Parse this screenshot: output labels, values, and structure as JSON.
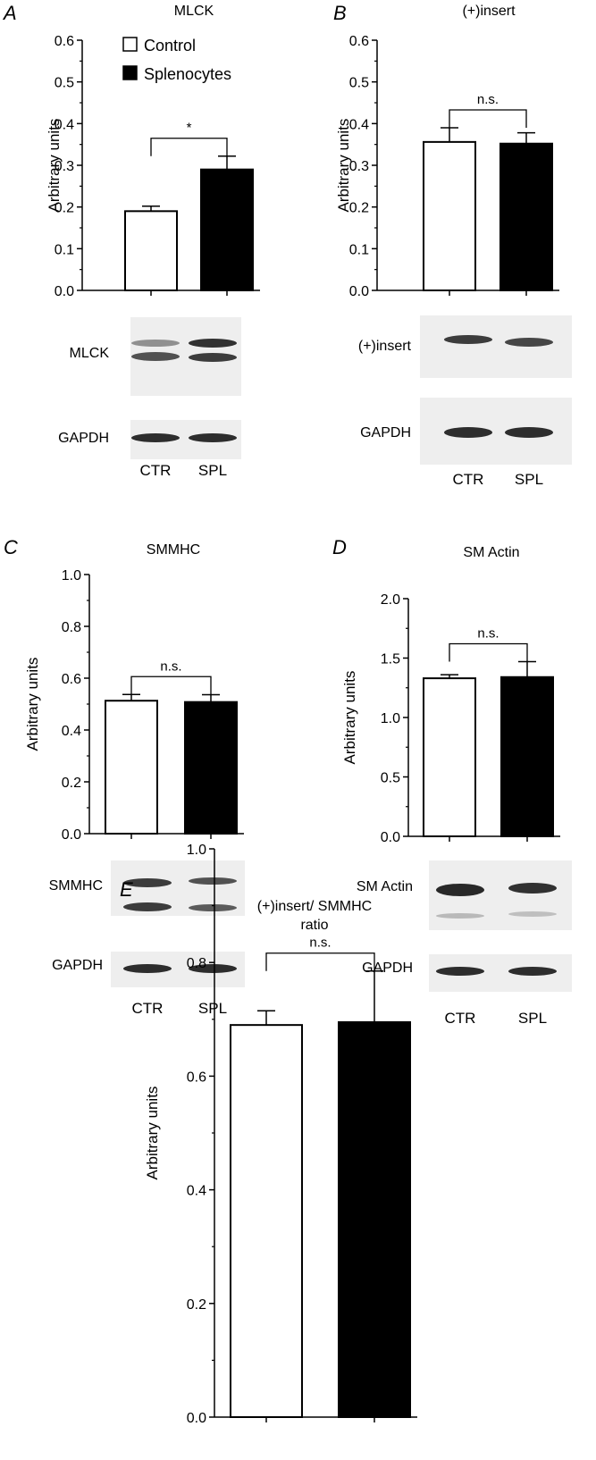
{
  "colors": {
    "control": "#ffffff",
    "splenocytes": "#000000",
    "axis": "#000000",
    "blot_bg": "#eeeeee",
    "band": "#1c1c1c"
  },
  "legend": {
    "control": "Control",
    "splenocytes": "Splenocytes"
  },
  "lanes": [
    "CTR",
    "SPL"
  ],
  "chart_data": [
    {
      "panel": "A",
      "type": "bar",
      "title": "MLCK",
      "ylabel": "Arbitrary units",
      "ylim": [
        0,
        0.6
      ],
      "yticks": [
        "0.0",
        "0.1",
        "0.2",
        "0.3",
        "0.4",
        "0.5",
        "0.6"
      ],
      "series": [
        {
          "name": "Control",
          "values": [
            0.19
          ],
          "error": [
            0.012
          ]
        },
        {
          "name": "Splenocytes",
          "values": [
            0.29
          ],
          "error": [
            0.032
          ]
        }
      ],
      "significance": "*",
      "legend": "top-left",
      "blot": {
        "target": "MLCK",
        "loading": "GAPDH",
        "lanes": [
          "CTR",
          "SPL"
        ]
      }
    },
    {
      "panel": "B",
      "type": "bar",
      "title": "(+)insert",
      "ylabel": "Arbitrary units",
      "ylim": [
        0,
        0.6
      ],
      "yticks": [
        "0.0",
        "0.1",
        "0.2",
        "0.3",
        "0.4",
        "0.5",
        "0.6"
      ],
      "series": [
        {
          "name": "Control",
          "values": [
            0.356
          ],
          "error": [
            0.034
          ]
        },
        {
          "name": "Splenocytes",
          "values": [
            0.352
          ],
          "error": [
            0.026
          ]
        }
      ],
      "significance": "n.s.",
      "blot": {
        "target": "(+)insert",
        "loading": "GAPDH",
        "lanes": [
          "CTR",
          "SPL"
        ]
      }
    },
    {
      "panel": "C",
      "type": "bar",
      "title": "SMMHC",
      "ylabel": "Arbitrary units",
      "ylim": [
        0,
        1.0
      ],
      "yticks": [
        "0.0",
        "0.2",
        "0.4",
        "0.6",
        "0.8",
        "1.0"
      ],
      "series": [
        {
          "name": "Control",
          "values": [
            0.513
          ],
          "error": [
            0.024
          ]
        },
        {
          "name": "Splenocytes",
          "values": [
            0.508
          ],
          "error": [
            0.028
          ]
        }
      ],
      "significance": "n.s.",
      "blot": {
        "target": "SMMHC",
        "loading": "GAPDH",
        "lanes": [
          "CTR",
          "SPL"
        ]
      }
    },
    {
      "panel": "D",
      "type": "bar",
      "title": "SM Actin",
      "ylabel": "Arbitrary units",
      "ylim": [
        0,
        2.0
      ],
      "yticks": [
        "0.0",
        "0.5",
        "1.0",
        "1.5",
        "2.0"
      ],
      "series": [
        {
          "name": "Control",
          "values": [
            1.33
          ],
          "error": [
            0.03
          ]
        },
        {
          "name": "Splenocytes",
          "values": [
            1.34
          ],
          "error": [
            0.13
          ]
        }
      ],
      "significance": "n.s.",
      "blot": {
        "target": "SM Actin",
        "loading": "GAPDH",
        "lanes": [
          "CTR",
          "SPL"
        ]
      }
    },
    {
      "panel": "E",
      "type": "bar",
      "title": "(+)insert/ SMMHC",
      "subtitle": "ratio",
      "ylabel": "Arbitrary units",
      "ylim": [
        0,
        1.0
      ],
      "yticks": [
        "0.0",
        "0.2",
        "0.4",
        "0.6",
        "0.8",
        "1.0"
      ],
      "series": [
        {
          "name": "Control",
          "values": [
            0.69
          ],
          "error": [
            0.025
          ]
        },
        {
          "name": "Splenocytes",
          "values": [
            0.695
          ],
          "error": [
            0.09
          ]
        }
      ],
      "significance": "n.s."
    }
  ]
}
